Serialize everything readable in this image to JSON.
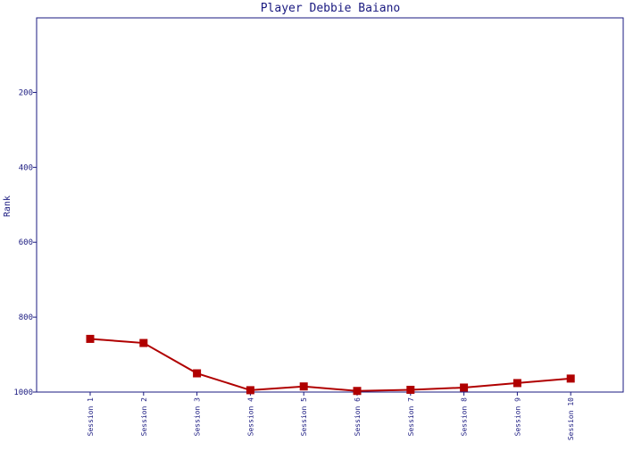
{
  "chart_data": {
    "type": "line",
    "title": "Player Debbie Baiano",
    "xlabel": "",
    "ylabel": "Rank",
    "categories": [
      "Session 1",
      "Session 2",
      "Session 3",
      "Session 4",
      "Session 5",
      "Session 6",
      "Session 7",
      "Session 8",
      "Session 9",
      "Session 10"
    ],
    "series": [
      {
        "values": [
          858,
          869,
          950,
          995,
          985,
          997,
          994,
          988,
          976,
          964
        ]
      }
    ],
    "y_ticks": [
      "200",
      "400",
      "600",
      "800",
      "1000"
    ],
    "ylim": [
      1000,
      1
    ],
    "y_inverted": true,
    "grid": false,
    "line_color": "#b00000",
    "marker_color": "#b00000",
    "axis_color": "#1a1a80"
  }
}
